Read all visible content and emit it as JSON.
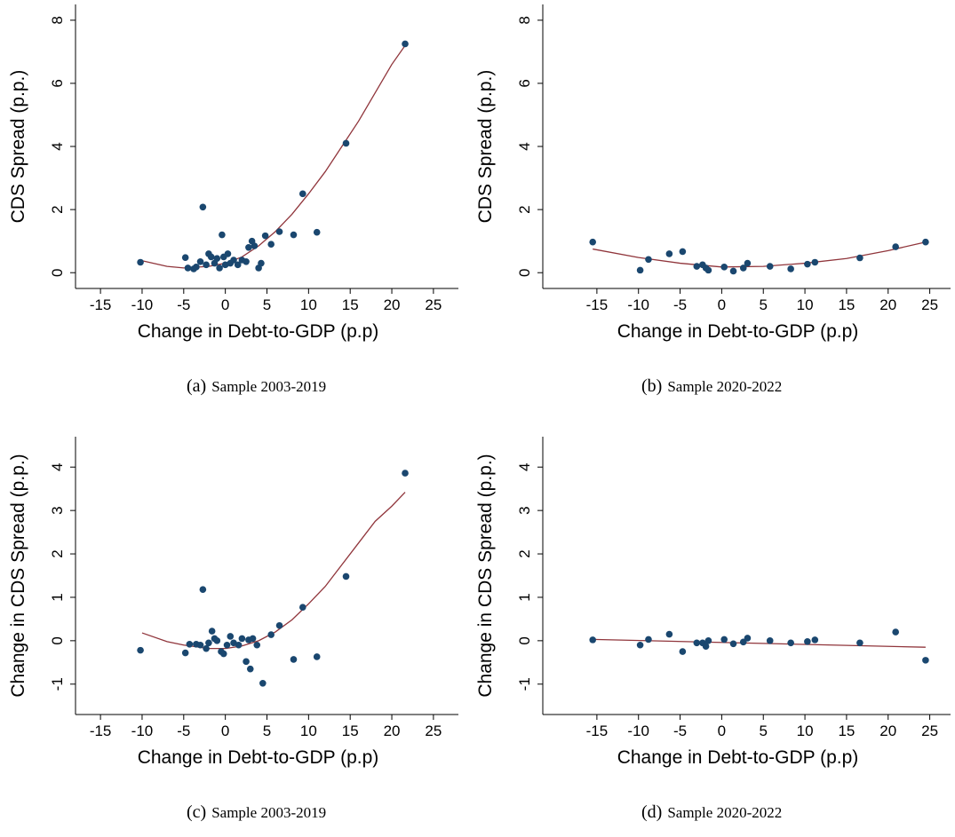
{
  "chart_data": [
    {
      "type": "scatter",
      "x_label": "Change in Debt-to-GDP (p.p)",
      "y_label": "CDS Spread (p.p.)",
      "caption_label": "(a)",
      "caption": "Sample 2003-2019",
      "xlim": [
        -18,
        28
      ],
      "ylim": [
        -0.5,
        8.5
      ],
      "xticks": [
        -15,
        -10,
        -5,
        0,
        5,
        10,
        15,
        20,
        25
      ],
      "yticks": [
        0,
        2,
        4,
        6,
        8
      ],
      "color": "#1a476f",
      "x": [
        -10.2,
        -4.8,
        -4.5,
        -3.8,
        -3.5,
        -3,
        -2.7,
        -2.3,
        -2,
        -1.7,
        -1.3,
        -1,
        -0.7,
        -0.4,
        -0.2,
        0,
        0.3,
        0.6,
        1,
        1.5,
        2,
        2.5,
        2.8,
        3.2,
        3.5,
        4,
        4.3,
        4.8,
        5.5,
        6.5,
        8.2,
        9.3,
        11,
        14.5,
        21.6
      ],
      "values": [
        0.33,
        0.48,
        0.15,
        0.12,
        0.18,
        0.35,
        2.08,
        0.25,
        0.6,
        0.5,
        0.3,
        0.45,
        0.15,
        1.2,
        0.5,
        0.25,
        0.6,
        0.3,
        0.4,
        0.25,
        0.4,
        0.35,
        0.8,
        1.0,
        0.85,
        0.15,
        0.3,
        1.17,
        0.9,
        1.3,
        1.2,
        2.5,
        1.28,
        4.1,
        7.25
      ],
      "fit": {
        "color": "#90353b",
        "x": [
          -10,
          -7,
          -5,
          -2,
          0,
          2,
          4,
          6,
          8,
          10,
          12,
          14,
          16,
          18,
          20,
          21.6
        ],
        "values": [
          0.38,
          0.2,
          0.15,
          0.2,
          0.3,
          0.5,
          0.85,
          1.3,
          1.85,
          2.5,
          3.2,
          4.0,
          4.8,
          5.7,
          6.6,
          7.2
        ]
      }
    },
    {
      "type": "scatter",
      "x_label": "Change in Debt-to-GDP (p.p)",
      "y_label": "CDS Spread (p.p.)",
      "caption_label": "(b)",
      "caption": "Sample 2020-2022",
      "xlim": [
        -21.5,
        27.5
      ],
      "ylim": [
        -0.5,
        8.5
      ],
      "xticks": [
        -15,
        -10,
        -5,
        0,
        5,
        10,
        15,
        20,
        25
      ],
      "yticks": [
        0,
        2,
        4,
        6,
        8
      ],
      "color": "#1a476f",
      "x": [
        -15.5,
        -9.8,
        -8.8,
        -6.3,
        -4.7,
        -3,
        -2.3,
        -1.9,
        -1.6,
        0.3,
        1.4,
        2.6,
        3.1,
        5.8,
        8.3,
        10.3,
        11.2,
        16.6,
        20.9,
        24.5
      ],
      "values": [
        0.97,
        0.08,
        0.42,
        0.6,
        0.67,
        0.2,
        0.25,
        0.15,
        0.08,
        0.18,
        0.05,
        0.15,
        0.3,
        0.2,
        0.12,
        0.27,
        0.33,
        0.47,
        0.82,
        0.97
      ],
      "fit": {
        "color": "#90353b",
        "x": [
          -15.5,
          -10,
          -5,
          0,
          5,
          10,
          15,
          20,
          24.5
        ],
        "values": [
          0.75,
          0.48,
          0.3,
          0.18,
          0.2,
          0.3,
          0.45,
          0.7,
          0.97
        ]
      }
    },
    {
      "type": "scatter",
      "x_label": "Change in Debt-to-GDP (p.p)",
      "y_label": "Change in CDS Spread (p.p.)",
      "caption_label": "(c)",
      "caption": "Sample 2003-2019",
      "xlim": [
        -18,
        28
      ],
      "ylim": [
        -1.7,
        4.7
      ],
      "xticks": [
        -15,
        -10,
        -5,
        0,
        5,
        10,
        15,
        20,
        25
      ],
      "yticks": [
        -1,
        0,
        1,
        2,
        3,
        4
      ],
      "color": "#1a476f",
      "x": [
        -10.2,
        -4.8,
        -4.3,
        -3.5,
        -3,
        -2.7,
        -2.3,
        -2,
        -1.6,
        -1.3,
        -1,
        -0.5,
        -0.2,
        0.2,
        0.6,
        1,
        1.6,
        2,
        2.5,
        2.8,
        3,
        3.3,
        3.8,
        4.5,
        5.5,
        6.5,
        8.2,
        9.3,
        11,
        14.5,
        21.6
      ],
      "values": [
        -0.22,
        -0.28,
        -0.08,
        -0.08,
        -0.1,
        1.18,
        -0.18,
        -0.05,
        0.22,
        0.05,
        0,
        -0.25,
        -0.3,
        -0.1,
        0.1,
        -0.05,
        -0.1,
        0.05,
        -0.48,
        0.02,
        -0.65,
        0.05,
        -0.1,
        -0.98,
        0.14,
        0.35,
        -0.43,
        0.77,
        -0.37,
        1.48,
        3.86
      ],
      "fit": {
        "color": "#90353b",
        "x": [
          -10,
          -7,
          -5,
          -2,
          0,
          2,
          4,
          6,
          8,
          10,
          12,
          14,
          16,
          18,
          20,
          21.6
        ],
        "values": [
          0.18,
          -0.02,
          -0.1,
          -0.18,
          -0.18,
          -0.12,
          0,
          0.2,
          0.48,
          0.85,
          1.25,
          1.75,
          2.25,
          2.75,
          3.1,
          3.42
        ]
      }
    },
    {
      "type": "scatter",
      "x_label": "Change in Debt-to-GDP (p.p)",
      "y_label": "Change in CDS Spread (p.p.)",
      "caption_label": "(d)",
      "caption": "Sample 2020-2022",
      "xlim": [
        -21.5,
        27.5
      ],
      "ylim": [
        -1.7,
        4.7
      ],
      "xticks": [
        -15,
        -10,
        -5,
        0,
        5,
        10,
        15,
        20,
        25
      ],
      "yticks": [
        -1,
        0,
        1,
        2,
        3,
        4
      ],
      "color": "#1a476f",
      "x": [
        -15.5,
        -9.8,
        -8.8,
        -6.3,
        -4.7,
        -3,
        -2.3,
        -1.9,
        -1.6,
        0.3,
        1.4,
        2.6,
        3.1,
        5.8,
        8.3,
        10.3,
        11.2,
        16.6,
        20.9,
        24.5
      ],
      "values": [
        0.02,
        -0.1,
        0.03,
        0.15,
        -0.25,
        -0.05,
        -0.05,
        -0.13,
        0,
        0.03,
        -0.07,
        -0.03,
        0.06,
        0,
        -0.05,
        -0.02,
        0.02,
        -0.05,
        0.2,
        -0.45
      ],
      "fit": {
        "color": "#90353b",
        "x": [
          -15.5,
          24.5
        ],
        "values": [
          0.03,
          -0.15
        ]
      }
    }
  ]
}
